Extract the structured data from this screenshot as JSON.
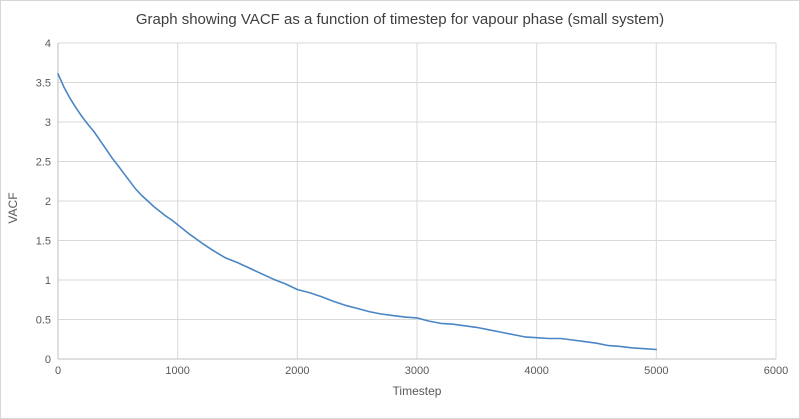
{
  "chart_data": {
    "type": "line",
    "title": "Graph showing VACF as a function of timestep for vapour phase (small system)",
    "xlabel": "Timestep",
    "ylabel": "VACF",
    "xlim": [
      0,
      6000
    ],
    "ylim": [
      0,
      4
    ],
    "x_ticks": [
      0,
      1000,
      2000,
      3000,
      4000,
      5000,
      6000
    ],
    "y_ticks": [
      0,
      0.5,
      1,
      1.5,
      2,
      2.5,
      3,
      3.5,
      4
    ],
    "grid": true,
    "legend_position": "none",
    "colors": {
      "line": "#4a86c5",
      "grid": "#d9d9d9",
      "axis": "#bfbfbf",
      "tick_text": "#595959"
    },
    "series": [
      {
        "name": "VACF",
        "x": [
          0,
          50,
          100,
          150,
          200,
          250,
          300,
          350,
          400,
          450,
          500,
          550,
          600,
          650,
          700,
          750,
          800,
          850,
          900,
          950,
          1000,
          1100,
          1200,
          1300,
          1400,
          1500,
          1600,
          1700,
          1800,
          1900,
          2000,
          2100,
          2200,
          2300,
          2400,
          2500,
          2600,
          2700,
          2800,
          2900,
          3000,
          3100,
          3200,
          3300,
          3400,
          3500,
          3600,
          3700,
          3800,
          3900,
          4000,
          4100,
          4200,
          4300,
          4400,
          4500,
          4600,
          4700,
          4800,
          4900,
          5000
        ],
        "y": [
          3.61,
          3.44,
          3.3,
          3.18,
          3.07,
          2.97,
          2.88,
          2.77,
          2.66,
          2.55,
          2.45,
          2.35,
          2.25,
          2.15,
          2.07,
          2.0,
          1.93,
          1.87,
          1.81,
          1.76,
          1.7,
          1.58,
          1.47,
          1.37,
          1.28,
          1.22,
          1.15,
          1.08,
          1.01,
          0.95,
          0.88,
          0.84,
          0.79,
          0.73,
          0.68,
          0.64,
          0.6,
          0.57,
          0.55,
          0.53,
          0.52,
          0.48,
          0.45,
          0.44,
          0.42,
          0.4,
          0.37,
          0.34,
          0.31,
          0.28,
          0.27,
          0.26,
          0.26,
          0.24,
          0.22,
          0.2,
          0.17,
          0.16,
          0.14,
          0.13,
          0.12
        ]
      }
    ]
  }
}
